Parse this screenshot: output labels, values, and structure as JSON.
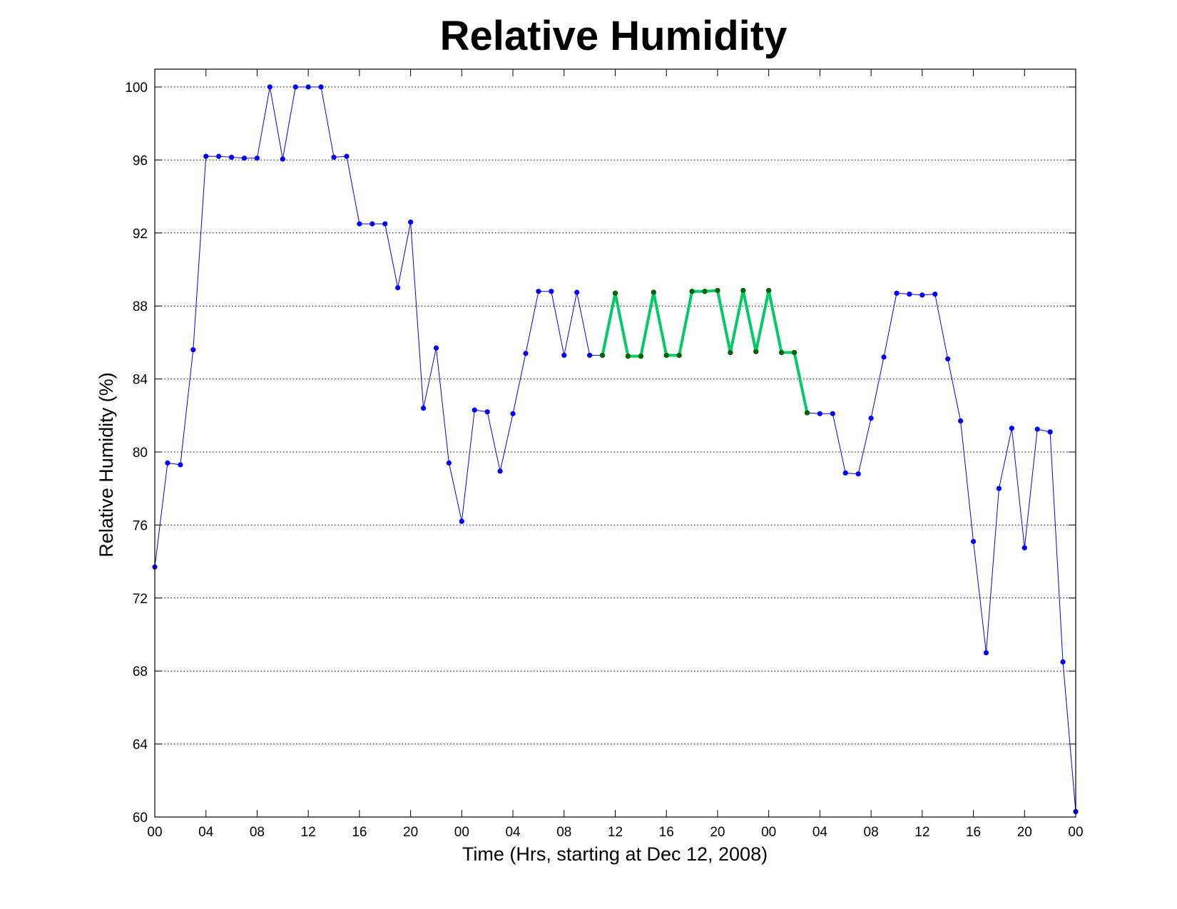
{
  "chart_data": {
    "type": "line",
    "title": "Relative Humidity",
    "xlabel": "Time (Hrs, starting at Dec 12, 2008)",
    "ylabel": "Relative Humidity (%)",
    "xlim": [
      0,
      72
    ],
    "ylim": [
      60,
      100
    ],
    "grid": "y-dotted",
    "x_tick_values": [
      0,
      4,
      8,
      12,
      16,
      20,
      24,
      28,
      32,
      36,
      40,
      44,
      48,
      52,
      56,
      60,
      64,
      68,
      72
    ],
    "x_tick_labels": [
      "00",
      "04",
      "08",
      "12",
      "16",
      "20",
      "00",
      "04",
      "08",
      "12",
      "16",
      "20",
      "00",
      "04",
      "08",
      "12",
      "16",
      "20",
      "00"
    ],
    "y_ticks": [
      60,
      64,
      68,
      72,
      76,
      80,
      84,
      88,
      92,
      96,
      100
    ],
    "series": [
      {
        "color": "#0000ff",
        "line_width": 1,
        "x": [
          0,
          1,
          2,
          3,
          4,
          5,
          6,
          7,
          8,
          9,
          10,
          11,
          12,
          13,
          14,
          15,
          16,
          17,
          18,
          19,
          20,
          21,
          22,
          23,
          24,
          25,
          26,
          27,
          28,
          29,
          30,
          31,
          32,
          33,
          34,
          35,
          36,
          37,
          38,
          39,
          40,
          41,
          42,
          43,
          44,
          45,
          46,
          47,
          48,
          49,
          50,
          51,
          52,
          53,
          54,
          55,
          56,
          57,
          58,
          59,
          60,
          61,
          62,
          63,
          64,
          65,
          66,
          67,
          68,
          69,
          70,
          71,
          72
        ],
        "values": [
          73.7,
          79.4,
          79.3,
          85.6,
          96.2,
          96.2,
          96.15,
          96.1,
          96.1,
          100,
          96.05,
          100,
          100,
          100,
          96.15,
          96.2,
          92.5,
          92.5,
          92.5,
          89,
          92.6,
          82.4,
          85.7,
          79.4,
          76.2,
          82.3,
          82.2,
          78.95,
          82.1,
          85.4,
          88.8,
          88.8,
          85.3,
          88.75,
          85.3,
          85.3,
          88.7,
          85.25,
          85.25,
          88.75,
          85.3,
          85.3,
          88.8,
          88.8,
          88.85,
          85.45,
          88.85,
          85.5,
          88.85,
          85.45,
          85.45,
          82.15,
          82.1,
          82.1,
          78.85,
          78.8,
          81.85,
          85.2,
          88.7,
          88.65,
          88.6,
          88.65,
          85.1,
          81.7,
          75.1,
          69,
          78,
          81.3,
          74.75,
          81.25,
          81.1,
          68.5,
          60.3
        ],
        "marker_color": "#0000ff"
      },
      {
        "color": "#00cc66",
        "line_width": 4,
        "x": [
          35,
          36,
          37,
          38,
          39,
          40,
          41,
          42,
          43,
          44,
          45,
          46,
          47,
          48,
          49,
          50,
          51
        ],
        "values": [
          85.3,
          88.7,
          85.25,
          85.25,
          88.75,
          85.3,
          85.3,
          88.8,
          88.8,
          88.85,
          85.45,
          88.85,
          85.5,
          88.85,
          85.45,
          85.45,
          82.15
        ],
        "marker_color": "#006600"
      }
    ]
  }
}
